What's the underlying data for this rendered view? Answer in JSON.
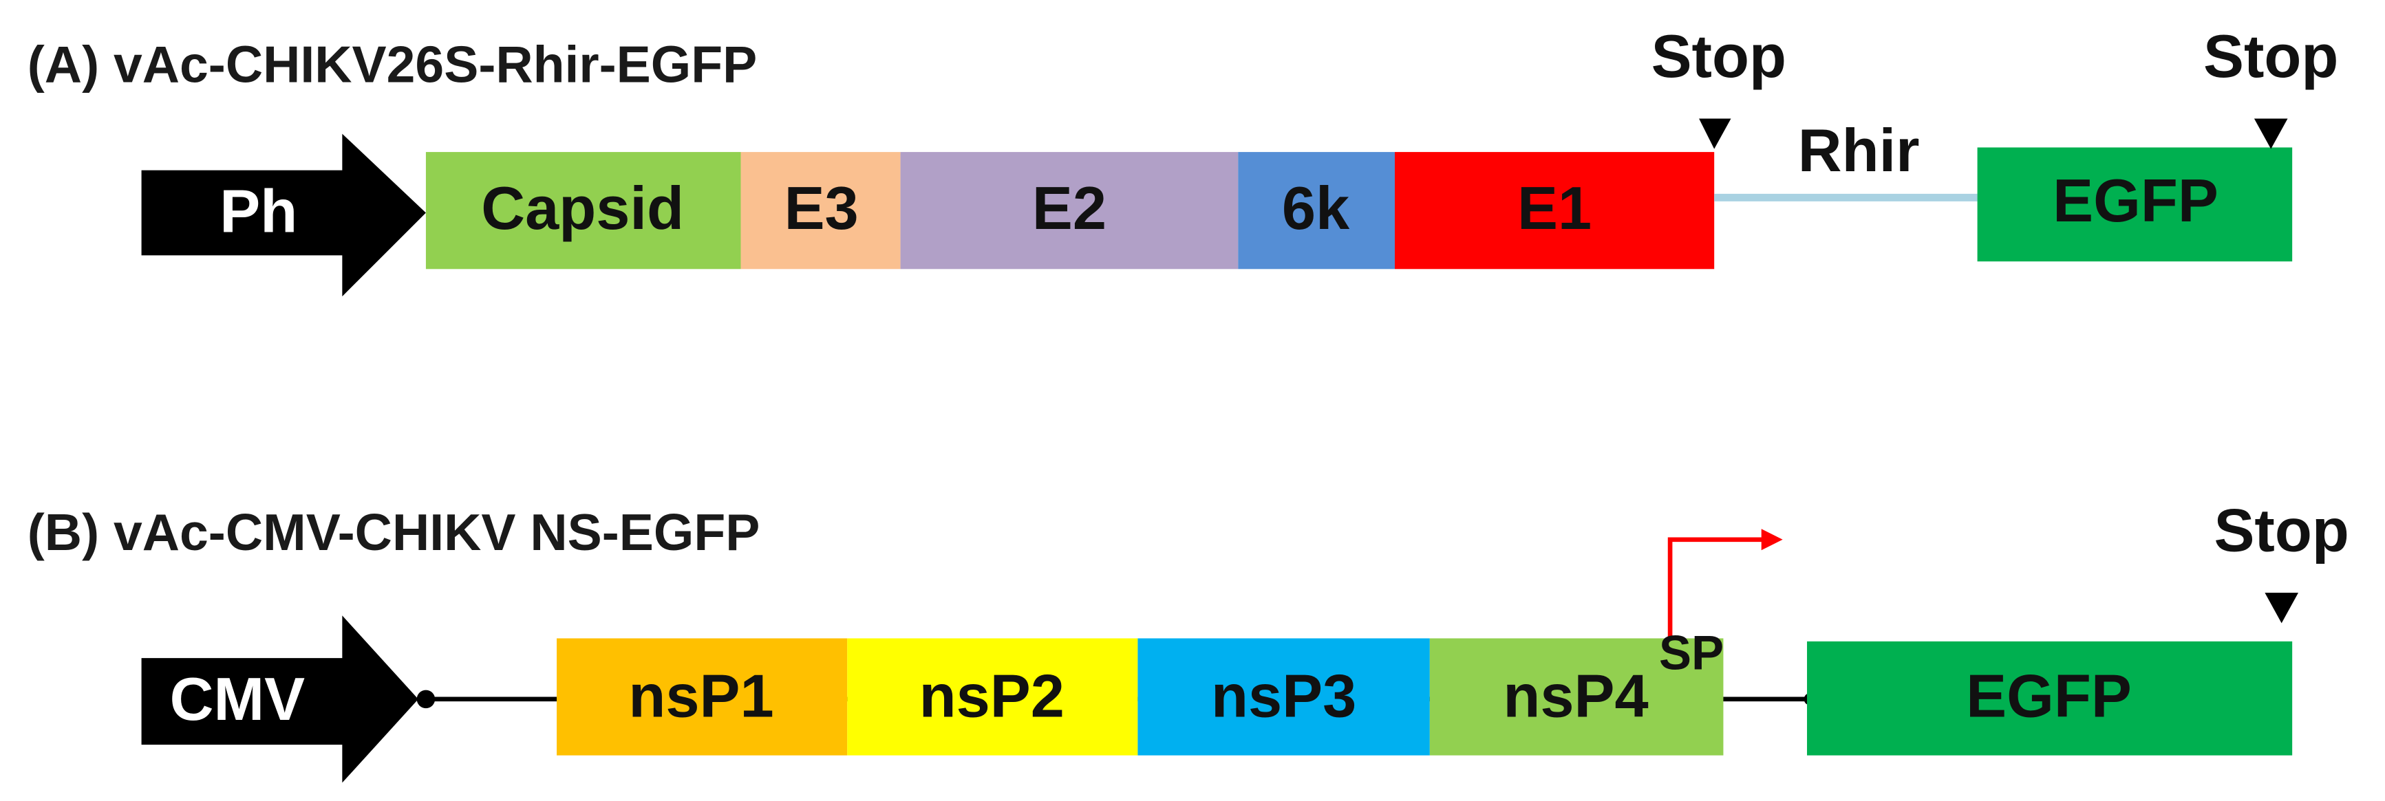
{
  "panel_a": {
    "title": "(A) vAc-CHIKV26S-Rhir-EGFP",
    "promoter": "Ph",
    "genes": [
      "Capsid",
      "E3",
      "E2",
      "6k",
      "E1"
    ],
    "linker": "Rhir",
    "reporter": "EGFP",
    "stops": [
      "Stop",
      "Stop"
    ]
  },
  "panel_b": {
    "title": "(B) vAc-CMV-CHIKV NS-EGFP",
    "promoter": "CMV",
    "genes": [
      "nsP1",
      "nsP2",
      "nsP3",
      "nsP4"
    ],
    "subgenomic_promoter": "SP",
    "reporter": "EGFP",
    "stops": [
      "Stop"
    ]
  }
}
